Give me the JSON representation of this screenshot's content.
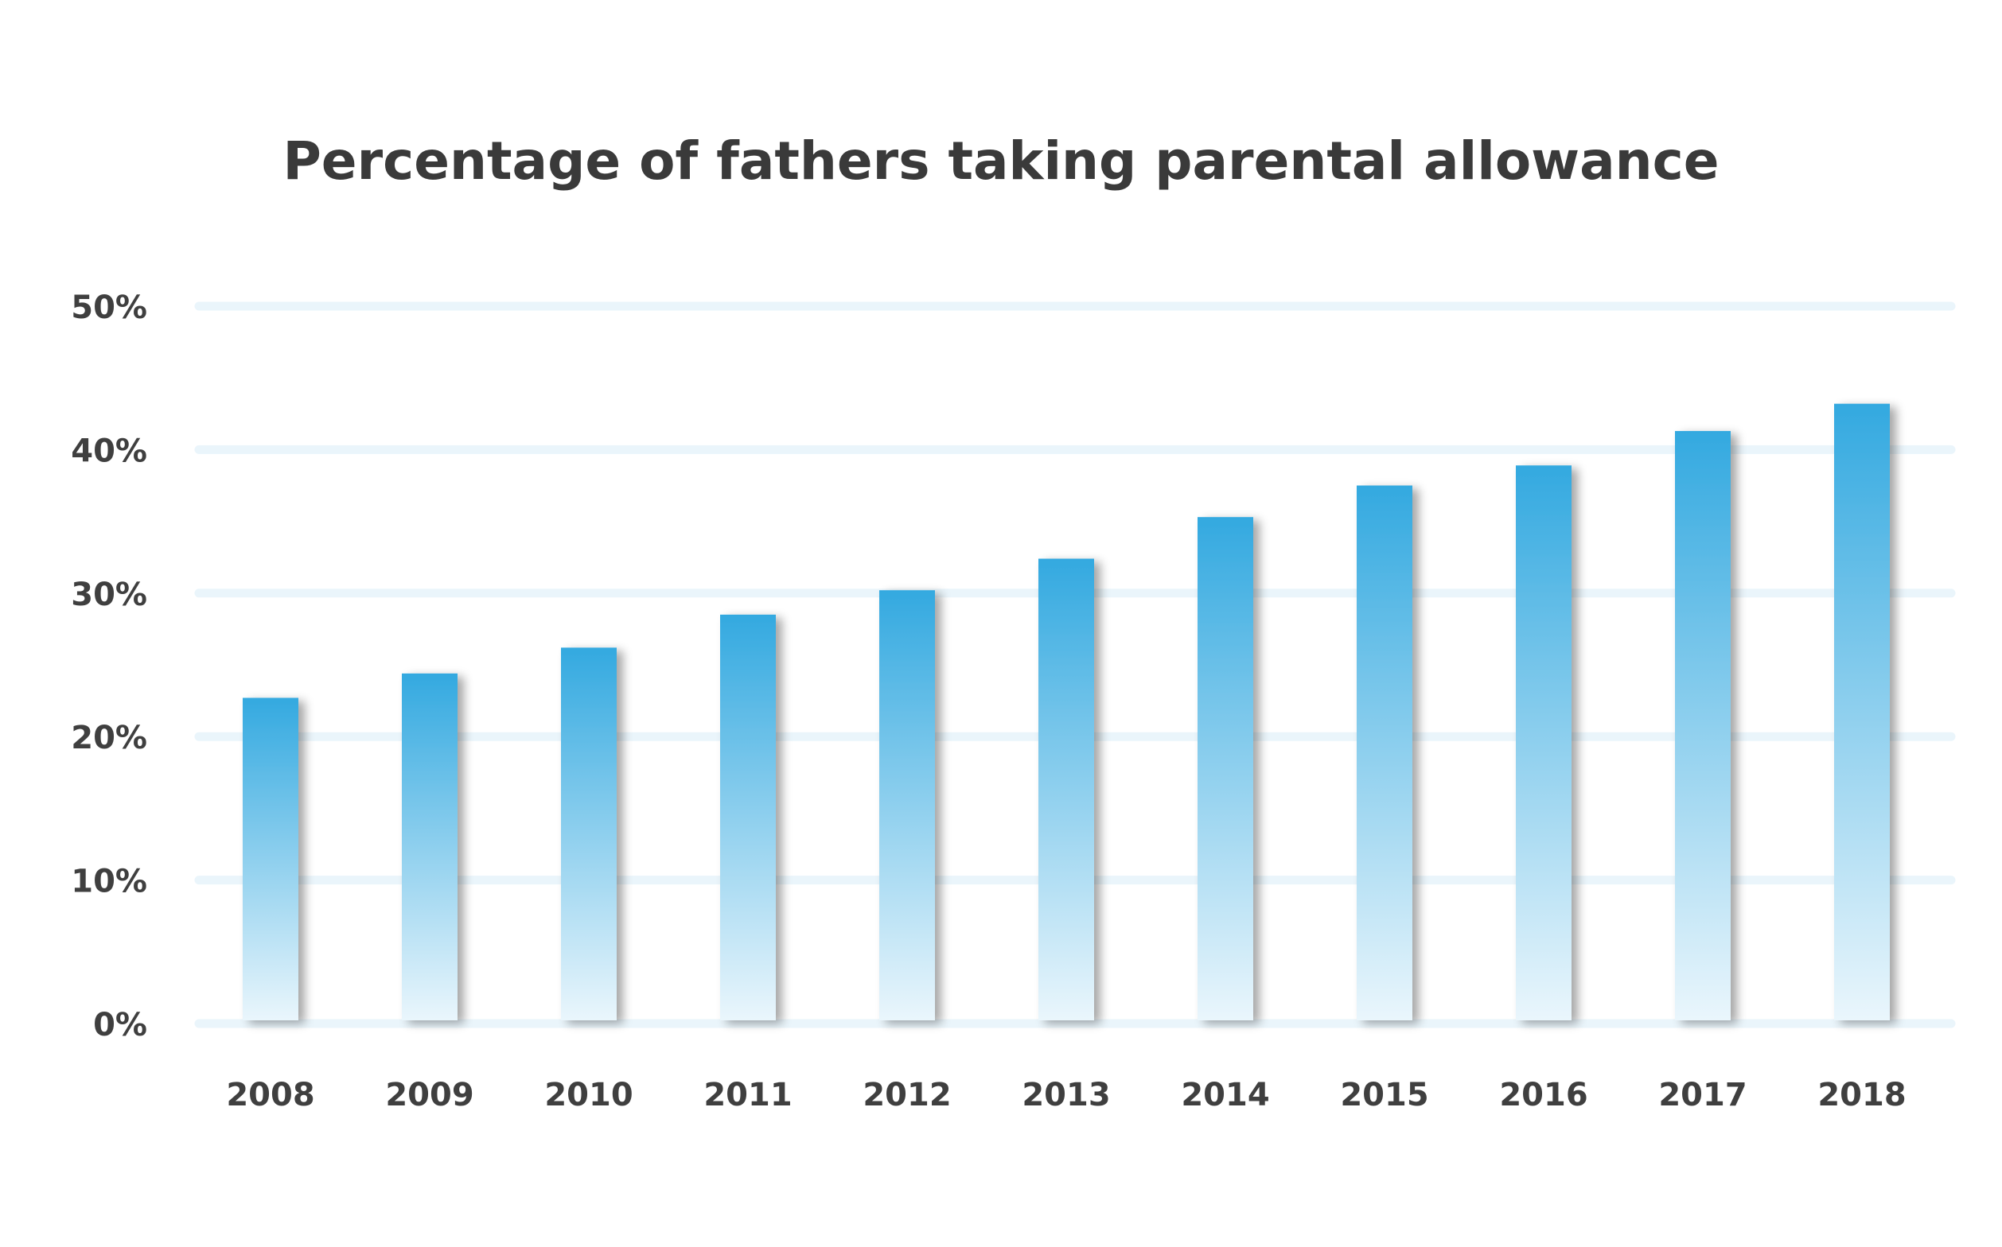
{
  "chart_data": {
    "type": "bar",
    "title": "Percentage of fathers taking parental allowance",
    "xlabel": "",
    "ylabel": "",
    "categories": [
      "2008",
      "2009",
      "2010",
      "2011",
      "2012",
      "2013",
      "2014",
      "2015",
      "2016",
      "2017",
      "2018"
    ],
    "values": [
      22.7,
      24.4,
      26.2,
      28.5,
      30.2,
      32.4,
      35.3,
      37.5,
      38.9,
      41.3,
      43.2
    ],
    "ylim": [
      0,
      50
    ],
    "yticks": [
      0,
      10,
      20,
      30,
      40,
      50
    ],
    "ytick_labels": [
      "0%",
      "10%",
      "20%",
      "30%",
      "40%",
      "50%"
    ],
    "grid": true,
    "legend": "none",
    "colors": {
      "bar_top": "#33a9e0",
      "bar_bottom": "#eaf6fc",
      "gridline": "#eaf5fb",
      "shadow": "#9a9a9a",
      "text": "#3f3f3f"
    }
  }
}
